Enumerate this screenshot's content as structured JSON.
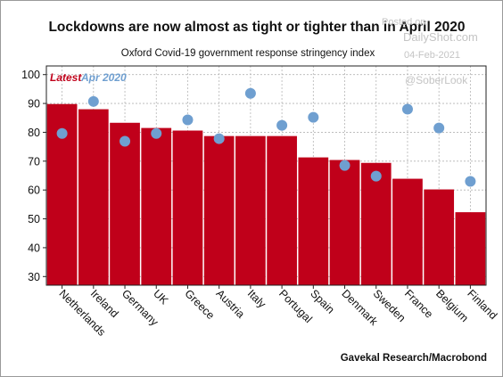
{
  "chart_data": {
    "type": "bar",
    "title": "Lockdowns are now almost as tight or tighter than in April 2020",
    "subtitle": "Oxford Covid-19 government response stringency index",
    "categories": [
      "Netherlands",
      "Ireland",
      "Germany",
      "UK",
      "Greece",
      "Austria",
      "Italy",
      "Portugal",
      "Spain",
      "Denmark",
      "Sweden",
      "France",
      "Belgium",
      "Finland"
    ],
    "series": [
      {
        "name": "Latest",
        "mark": "bar",
        "color": "#c0001a",
        "values": [
          89.8,
          88.0,
          83.3,
          81.5,
          80.6,
          78.7,
          78.7,
          78.7,
          71.3,
          70.4,
          69.4,
          63.9,
          60.2,
          52.3
        ]
      },
      {
        "name": "Apr 2020",
        "mark": "point",
        "color": "#6f9fd0",
        "values": [
          79.6,
          90.7,
          76.9,
          79.6,
          84.3,
          77.8,
          93.5,
          82.4,
          85.2,
          68.5,
          64.8,
          88.0,
          81.5,
          63.0
        ]
      }
    ],
    "yticks": [
      30,
      40,
      50,
      60,
      70,
      80,
      90,
      100
    ],
    "ylim": [
      27,
      103
    ],
    "grid": true,
    "legend_position": "top-left",
    "source": "Gavekal Research/Macrobond",
    "watermark": {
      "lines": [
        "Posted on",
        "DailyShot.com",
        "04-Feb-2021"
      ],
      "handle": "@SoberLook"
    }
  }
}
